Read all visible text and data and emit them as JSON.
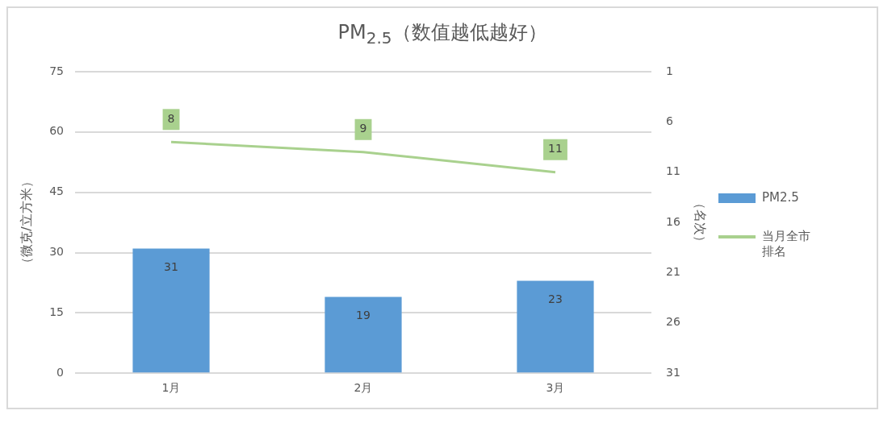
{
  "chart_data": {
    "type": "bar",
    "title": "PM$_{2.5}$（数值越低越好）",
    "categories": [
      "1月",
      "2月",
      "3月"
    ],
    "series": [
      {
        "name": "PM2.5",
        "color": "#5b9bd5",
        "values": [
          31,
          19,
          23
        ]
      },
      {
        "name": "当月全市排名",
        "type": "line",
        "axis": "y2",
        "color": "#a9d18e",
        "values": [
          8,
          9,
          11
        ]
      }
    ],
    "ylabel": "（微克/立方米）",
    "y2label": "（名次）",
    "ylim": [
      0,
      75
    ],
    "yticks": [
      0,
      15,
      30,
      45,
      60,
      75
    ],
    "y2lim": [
      31,
      1
    ],
    "y2ticks": [
      1,
      6,
      11,
      16,
      21,
      26,
      31
    ],
    "grid": "y",
    "legend": "right",
    "data_labels": true,
    "marker": "none",
    "line_style": "solid"
  }
}
